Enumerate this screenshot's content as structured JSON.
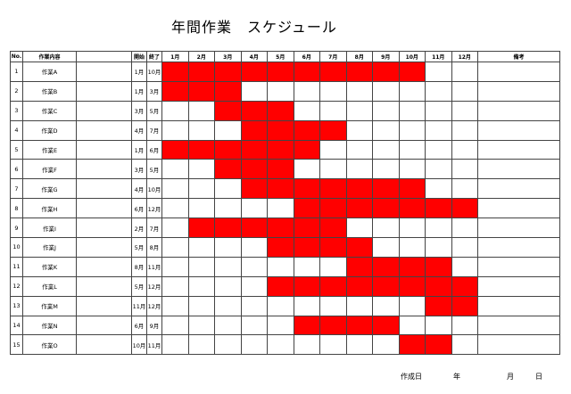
{
  "title": "年間作業　スケジュール",
  "header": {
    "no": "No.",
    "task": "作業内容",
    "start": "開始",
    "end": "終了",
    "months": [
      "1月",
      "2月",
      "3月",
      "4月",
      "5月",
      "6月",
      "7月",
      "8月",
      "9月",
      "10月",
      "11月",
      "12月"
    ],
    "remarks": "備考"
  },
  "rows": [
    {
      "no": "1",
      "name": "作業A",
      "start": "1月",
      "end": "10月",
      "active": [
        1,
        1,
        1,
        1,
        1,
        1,
        1,
        1,
        1,
        1,
        0,
        0
      ]
    },
    {
      "no": "2",
      "name": "作業B",
      "start": "1月",
      "end": "3月",
      "active": [
        1,
        1,
        1,
        0,
        0,
        0,
        0,
        0,
        0,
        0,
        0,
        0
      ]
    },
    {
      "no": "3",
      "name": "作業C",
      "start": "3月",
      "end": "5月",
      "active": [
        0,
        0,
        1,
        1,
        1,
        0,
        0,
        0,
        0,
        0,
        0,
        0
      ]
    },
    {
      "no": "4",
      "name": "作業D",
      "start": "4月",
      "end": "7月",
      "active": [
        0,
        0,
        0,
        1,
        1,
        1,
        1,
        0,
        0,
        0,
        0,
        0
      ]
    },
    {
      "no": "5",
      "name": "作業E",
      "start": "1月",
      "end": "6月",
      "active": [
        1,
        1,
        1,
        1,
        1,
        1,
        0,
        0,
        0,
        0,
        0,
        0
      ]
    },
    {
      "no": "6",
      "name": "作業F",
      "start": "3月",
      "end": "5月",
      "active": [
        0,
        0,
        1,
        1,
        1,
        0,
        0,
        0,
        0,
        0,
        0,
        0
      ]
    },
    {
      "no": "7",
      "name": "作業G",
      "start": "4月",
      "end": "10月",
      "active": [
        0,
        0,
        0,
        1,
        1,
        1,
        1,
        1,
        1,
        1,
        0,
        0
      ]
    },
    {
      "no": "8",
      "name": "作業H",
      "start": "6月",
      "end": "12月",
      "active": [
        0,
        0,
        0,
        0,
        0,
        1,
        1,
        1,
        1,
        1,
        1,
        1
      ]
    },
    {
      "no": "9",
      "name": "作業I",
      "start": "2月",
      "end": "7月",
      "active": [
        0,
        1,
        1,
        1,
        1,
        1,
        1,
        0,
        0,
        0,
        0,
        0
      ]
    },
    {
      "no": "10",
      "name": "作業J",
      "start": "5月",
      "end": "8月",
      "active": [
        0,
        0,
        0,
        0,
        1,
        1,
        1,
        1,
        0,
        0,
        0,
        0
      ]
    },
    {
      "no": "11",
      "name": "作業K",
      "start": "8月",
      "end": "11月",
      "active": [
        0,
        0,
        0,
        0,
        0,
        0,
        0,
        1,
        1,
        1,
        1,
        0
      ]
    },
    {
      "no": "12",
      "name": "作業L",
      "start": "5月",
      "end": "12月",
      "active": [
        0,
        0,
        0,
        0,
        1,
        1,
        1,
        1,
        1,
        1,
        1,
        1
      ]
    },
    {
      "no": "13",
      "name": "作業M",
      "start": "11月",
      "end": "12月",
      "active": [
        0,
        0,
        0,
        0,
        0,
        0,
        0,
        0,
        0,
        0,
        1,
        1
      ]
    },
    {
      "no": "14",
      "name": "作業N",
      "start": "6月",
      "end": "9月",
      "active": [
        0,
        0,
        0,
        0,
        0,
        1,
        1,
        1,
        1,
        0,
        0,
        0
      ]
    },
    {
      "no": "15",
      "name": "作業O",
      "start": "10月",
      "end": "11月",
      "active": [
        0,
        0,
        0,
        0,
        0,
        0,
        0,
        0,
        0,
        1,
        1,
        0
      ]
    }
  ],
  "footer": {
    "created_label": "作成日",
    "year_label": "年",
    "month_label": "月",
    "day_label": "日"
  },
  "colors": {
    "active_fill": "#ff0000"
  }
}
